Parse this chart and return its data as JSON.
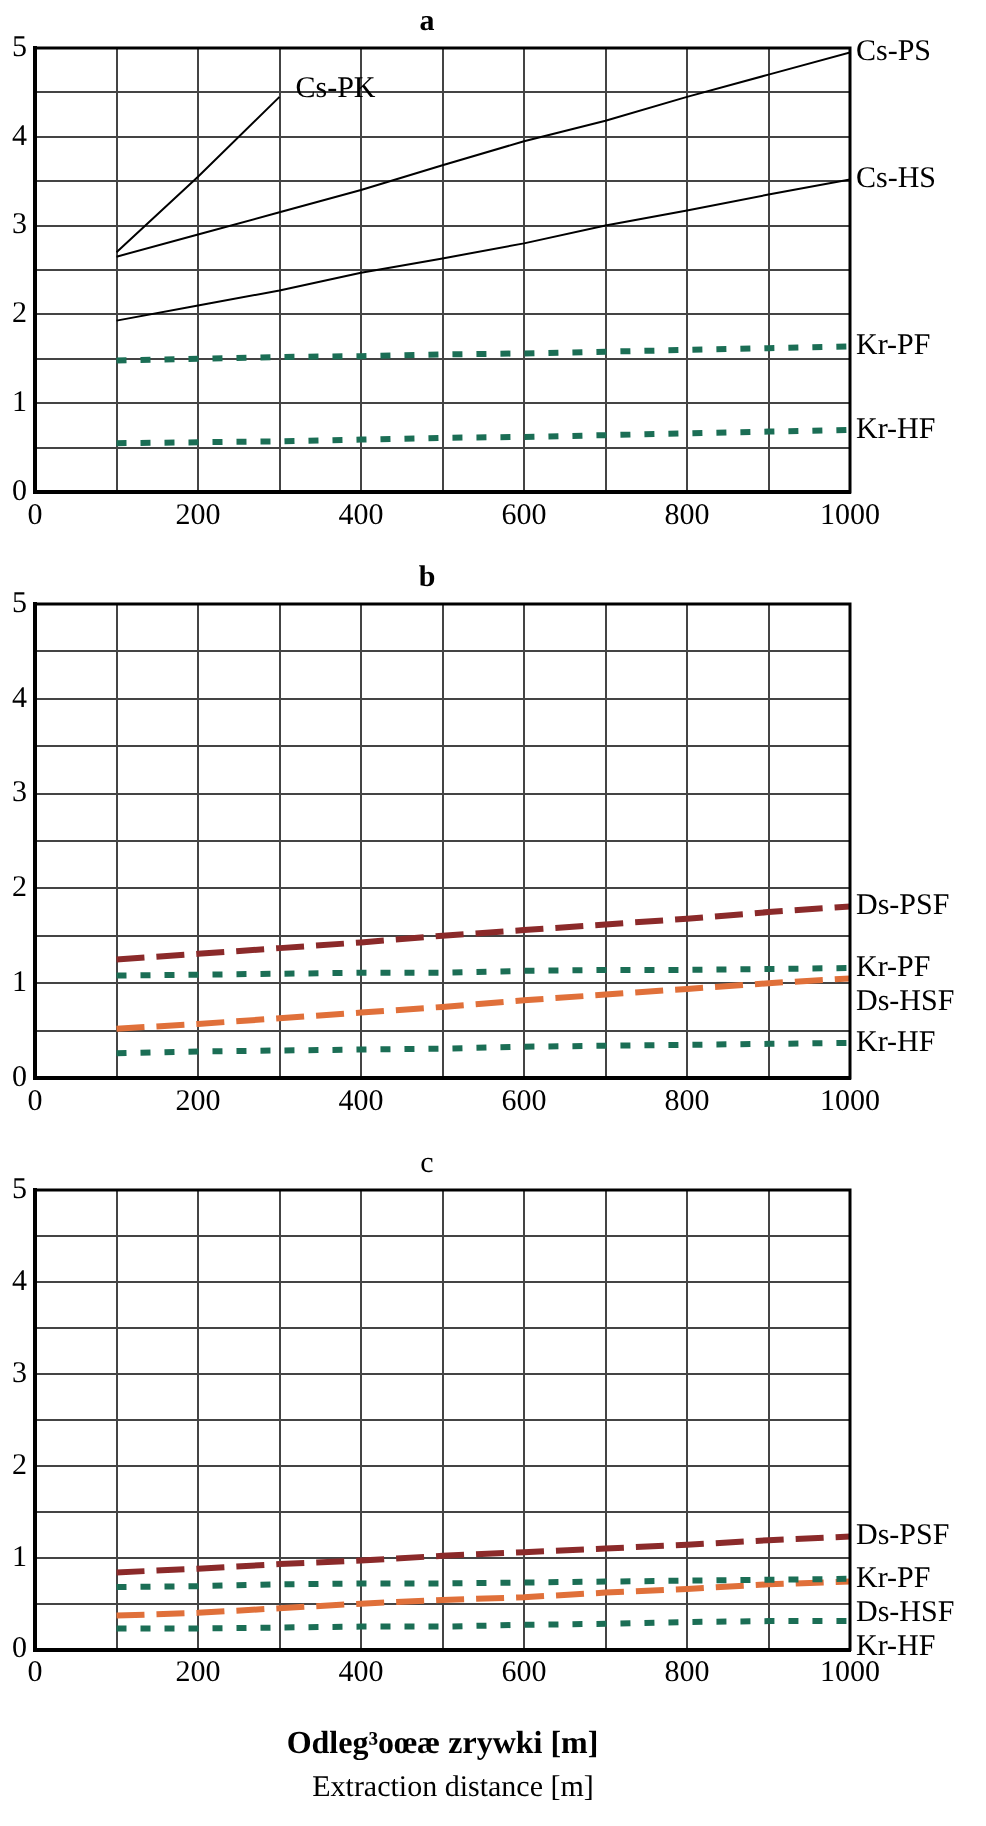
{
  "chart_data": [
    {
      "type": "line",
      "title": "a",
      "legend": false,
      "grid": true,
      "marker": "none",
      "x": [
        100,
        200,
        300,
        400,
        500,
        600,
        700,
        800,
        900,
        1000
      ],
      "xlim": [
        0,
        1000
      ],
      "xticks": [
        0,
        {
          "value": 100,
          "label": null
        },
        200,
        {
          "value": 300,
          "label": null
        },
        400,
        {
          "value": 500,
          "label": null
        },
        600,
        {
          "value": 700,
          "label": null
        },
        800,
        {
          "value": 900,
          "label": null
        },
        1000
      ],
      "ylim": [
        0,
        5
      ],
      "yticks": [
        0,
        {
          "value": 0.5,
          "label": null
        },
        1,
        {
          "value": 1.5,
          "label": null
        },
        2,
        {
          "value": 2.5,
          "label": null
        },
        3,
        {
          "value": 3.5,
          "label": null
        },
        4,
        {
          "value": 4.5,
          "label": null
        },
        5
      ],
      "series": [
        {
          "name": "Cs-PK",
          "color": "#000000",
          "line_style": "solid",
          "x": [
            100,
            200,
            300
          ],
          "values": [
            2.7,
            3.55,
            4.45
          ]
        },
        {
          "name": "Cs-PS",
          "color": "#000000",
          "line_style": "solid",
          "values": [
            2.65,
            2.9,
            3.15,
            3.4,
            3.68,
            3.95,
            4.18,
            4.45,
            4.7,
            4.95
          ]
        },
        {
          "name": "Cs-HS",
          "color": "#000000",
          "line_style": "solid",
          "values": [
            1.93,
            2.1,
            2.27,
            2.47,
            2.63,
            2.8,
            3.0,
            3.17,
            3.35,
            3.52
          ]
        },
        {
          "name": "Kr-PF",
          "color": "#1b6e55",
          "line_style": "dotted",
          "values": [
            1.48,
            1.5,
            1.52,
            1.53,
            1.55,
            1.56,
            1.58,
            1.6,
            1.62,
            1.64
          ]
        },
        {
          "name": "Kr-HF",
          "color": "#1b6e55",
          "line_style": "dotted",
          "values": [
            0.55,
            0.56,
            0.57,
            0.59,
            0.61,
            0.62,
            0.64,
            0.66,
            0.68,
            0.7
          ]
        }
      ]
    },
    {
      "type": "line",
      "title": "b",
      "legend": false,
      "grid": true,
      "marker": "none",
      "x": [
        100,
        200,
        300,
        400,
        500,
        600,
        700,
        800,
        900,
        1000
      ],
      "xlim": [
        0,
        1000
      ],
      "xticks": [
        0,
        {
          "value": 100,
          "label": null
        },
        200,
        {
          "value": 300,
          "label": null
        },
        400,
        {
          "value": 500,
          "label": null
        },
        600,
        {
          "value": 700,
          "label": null
        },
        800,
        {
          "value": 900,
          "label": null
        },
        1000
      ],
      "ylim": [
        0,
        5
      ],
      "yticks": [
        0,
        {
          "value": 0.5,
          "label": null
        },
        1,
        {
          "value": 1.5,
          "label": null
        },
        2,
        {
          "value": 2.5,
          "label": null
        },
        3,
        {
          "value": 3.5,
          "label": null
        },
        4,
        {
          "value": 4.5,
          "label": null
        },
        5
      ],
      "series": [
        {
          "name": "Ds-PSF",
          "color": "#8b2a2a",
          "line_style": "dashed",
          "values": [
            1.25,
            1.31,
            1.37,
            1.43,
            1.5,
            1.56,
            1.62,
            1.68,
            1.75,
            1.81
          ]
        },
        {
          "name": "Kr-PF",
          "color": "#1b6e55",
          "line_style": "dotted",
          "values": [
            1.08,
            1.09,
            1.1,
            1.11,
            1.11,
            1.13,
            1.14,
            1.14,
            1.15,
            1.16
          ]
        },
        {
          "name": "Ds-HSF",
          "color": "#e0703a",
          "line_style": "dashed",
          "values": [
            0.52,
            0.57,
            0.63,
            0.69,
            0.75,
            0.82,
            0.88,
            0.94,
            1.0,
            1.05
          ]
        },
        {
          "name": "Kr-HF",
          "color": "#1b6e55",
          "line_style": "dotted",
          "values": [
            0.26,
            0.28,
            0.29,
            0.3,
            0.31,
            0.33,
            0.34,
            0.35,
            0.36,
            0.37
          ]
        }
      ]
    },
    {
      "type": "line",
      "title": "c",
      "xlabel": "Odleg³oœæ zrywki [m]",
      "annotations": [
        "Extraction distance [m]"
      ],
      "legend": false,
      "grid": true,
      "marker": "none",
      "x": [
        100,
        200,
        300,
        400,
        500,
        600,
        700,
        800,
        900,
        1000
      ],
      "xlim": [
        0,
        1000
      ],
      "xticks": [
        0,
        {
          "value": 100,
          "label": null
        },
        200,
        {
          "value": 300,
          "label": null
        },
        400,
        {
          "value": 500,
          "label": null
        },
        600,
        {
          "value": 700,
          "label": null
        },
        800,
        {
          "value": 900,
          "label": null
        },
        1000
      ],
      "ylim": [
        0,
        5
      ],
      "yticks": [
        0,
        {
          "value": 0.5,
          "label": null
        },
        1,
        {
          "value": 1.5,
          "label": null
        },
        2,
        {
          "value": 2.5,
          "label": null
        },
        3,
        {
          "value": 3.5,
          "label": null
        },
        4,
        {
          "value": 4.5,
          "label": null
        },
        5
      ],
      "series": [
        {
          "name": "Ds-PSF",
          "color": "#8b2a2a",
          "line_style": "dashed",
          "values": [
            0.84,
            0.88,
            0.93,
            0.97,
            1.02,
            1.06,
            1.1,
            1.14,
            1.19,
            1.23
          ]
        },
        {
          "name": "Kr-PF",
          "color": "#1b6e55",
          "line_style": "dotted",
          "values": [
            0.68,
            0.69,
            0.71,
            0.72,
            0.72,
            0.73,
            0.74,
            0.75,
            0.76,
            0.77
          ]
        },
        {
          "name": "Ds-HSF",
          "color": "#e0703a",
          "line_style": "dashed",
          "values": [
            0.37,
            0.4,
            0.45,
            0.5,
            0.54,
            0.57,
            0.62,
            0.66,
            0.71,
            0.74
          ]
        },
        {
          "name": "Kr-HF",
          "color": "#1b6e55",
          "line_style": "dotted",
          "values": [
            0.23,
            0.23,
            0.24,
            0.25,
            0.25,
            0.27,
            0.28,
            0.3,
            0.31,
            0.31
          ]
        }
      ]
    }
  ]
}
